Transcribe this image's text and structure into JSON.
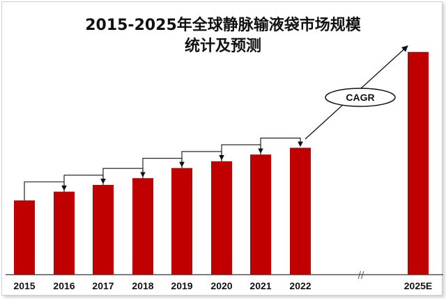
{
  "chart_data": {
    "type": "bar",
    "title": "2015-2025年全球静脉输液袋市场规模",
    "subtitle": "统计及预测",
    "categories": [
      "2015",
      "2016",
      "2017",
      "2018",
      "2019",
      "2020",
      "2021",
      "2022",
      "2025E"
    ],
    "values": [
      110,
      123,
      133,
      143,
      158,
      168,
      178,
      188,
      330
    ],
    "ylim": [
      0,
      340
    ],
    "annotation": "CAGR",
    "axis_break": "//",
    "bar_color": "#c00000",
    "grid": false,
    "legend": "none"
  }
}
